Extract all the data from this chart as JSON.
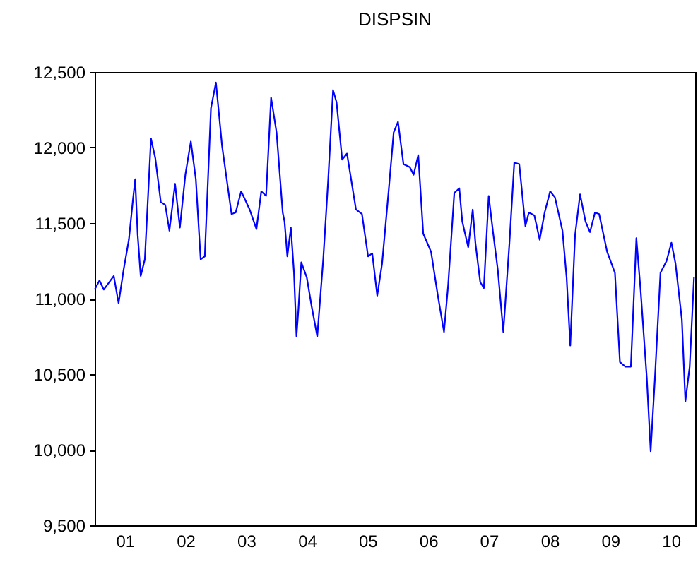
{
  "chart_data": {
    "type": "line",
    "title": "DISPSIN",
    "color": "#0000ff",
    "marker": "none",
    "grid": false,
    "x": [
      "2001-01-01",
      "2001-01-30",
      "2001-02-25",
      "2001-04-26",
      "2001-05-25",
      "2001-06-24",
      "2001-07-26",
      "2001-08-18",
      "2001-09-02",
      "2001-09-17",
      "2001-10-05",
      "2001-10-30",
      "2001-12-06",
      "2002-01-01",
      "2002-02-03",
      "2002-03-02",
      "2002-03-27",
      "2002-04-30",
      "2002-05-29",
      "2002-07-01",
      "2002-08-03",
      "2002-09-02",
      "2002-10-01",
      "2002-10-26",
      "2002-12-02",
      "2003-01-01",
      "2003-02-07",
      "2003-04-05",
      "2003-04-30",
      "2003-06-02",
      "2003-07-23",
      "2003-09-02",
      "2003-10-01",
      "2003-10-30",
      "2003-11-29",
      "2004-01-01",
      "2004-02-07",
      "2004-02-18",
      "2004-03-06",
      "2004-03-27",
      "2004-04-15",
      "2004-04-30",
      "2004-05-11",
      "2004-05-29",
      "2004-07-01",
      "2004-07-30",
      "2004-09-02",
      "2004-10-08",
      "2004-11-07",
      "2004-12-06",
      "2004-12-27",
      "2005-01-30",
      "2005-02-28",
      "2005-04-23",
      "2005-05-29",
      "2005-07-05",
      "2005-07-30",
      "2005-08-29",
      "2005-09-27",
      "2005-11-07",
      "2005-12-06",
      "2006-01-01",
      "2006-02-03",
      "2006-03-13",
      "2006-04-05",
      "2006-05-03",
      "2006-06-02",
      "2006-07-19",
      "2006-08-29",
      "2006-10-05",
      "2006-10-30",
      "2006-12-06",
      "2007-01-05",
      "2007-01-23",
      "2007-02-28",
      "2007-03-27",
      "2007-04-12",
      "2007-05-11",
      "2007-06-02",
      "2007-07-01",
      "2007-07-26",
      "2007-08-25",
      "2007-09-27",
      "2007-11-03",
      "2007-12-02",
      "2008-01-01",
      "2008-02-07",
      "2008-02-28",
      "2008-04-01",
      "2008-05-03",
      "2008-06-02",
      "2008-07-05",
      "2008-08-03",
      "2008-09-17",
      "2008-10-12",
      "2008-11-03",
      "2008-12-02",
      "2009-01-01",
      "2009-02-03",
      "2009-03-02",
      "2009-04-01",
      "2009-04-26",
      "2009-06-13",
      "2009-07-30",
      "2009-08-29",
      "2009-10-01",
      "2009-11-03",
      "2009-12-06",
      "2010-01-01",
      "2010-02-07",
      "2010-03-02",
      "2010-03-27",
      "2010-04-30",
      "2010-06-06",
      "2010-07-05",
      "2010-07-30",
      "2010-09-06",
      "2010-09-27",
      "2010-10-23",
      "2010-11-18"
    ],
    "values": [
      11060,
      11120,
      11060,
      11150,
      10970,
      11190,
      11390,
      11640,
      11790,
      11420,
      11150,
      11260,
      12060,
      11930,
      11640,
      11620,
      11450,
      11760,
      11470,
      11820,
      12040,
      11790,
      11260,
      11280,
      12260,
      12430,
      12010,
      11560,
      11570,
      11710,
      11590,
      11460,
      11710,
      11680,
      12330,
      12100,
      11570,
      11510,
      11280,
      11470,
      11170,
      10750,
      10920,
      11240,
      11140,
      10950,
      10750,
      11260,
      11790,
      12380,
      12300,
      11920,
      11960,
      11590,
      11560,
      11280,
      11300,
      11020,
      11230,
      11730,
      12100,
      12170,
      11890,
      11870,
      11820,
      11950,
      11430,
      11310,
      11020,
      10780,
      11090,
      11700,
      11730,
      11510,
      11340,
      11590,
      11370,
      11110,
      11070,
      11680,
      11450,
      11190,
      10780,
      11370,
      11900,
      11890,
      11480,
      11570,
      11550,
      11390,
      11570,
      11710,
      11670,
      11450,
      11140,
      10690,
      11420,
      11690,
      11510,
      11440,
      11570,
      11560,
      11310,
      11170,
      10580,
      10550,
      10550,
      11400,
      11050,
      10470,
      9990,
      10460,
      11170,
      11250,
      11370,
      11230,
      10860,
      10320,
      10550,
      11140
    ],
    "xlim": [
      "2001-01-01",
      "2010-11-25"
    ],
    "xticks": [
      {
        "value": "2001-07-02",
        "label": "01"
      },
      {
        "value": "2002-07-02",
        "label": "02"
      },
      {
        "value": "2003-07-02",
        "label": "03"
      },
      {
        "value": "2004-07-02",
        "label": "04"
      },
      {
        "value": "2005-07-02",
        "label": "05"
      },
      {
        "value": "2006-07-02",
        "label": "06"
      },
      {
        "value": "2007-07-02",
        "label": "07"
      },
      {
        "value": "2008-07-02",
        "label": "08"
      },
      {
        "value": "2009-07-02",
        "label": "09"
      },
      {
        "value": "2010-07-02",
        "label": "10"
      }
    ],
    "ylim": [
      9500,
      12500
    ],
    "yticks": [
      {
        "value": 9500,
        "label": "9,500"
      },
      {
        "value": 10000,
        "label": "10,000"
      },
      {
        "value": 10500,
        "label": "10,500"
      },
      {
        "value": 11000,
        "label": "11,000"
      },
      {
        "value": 11500,
        "label": "11,500"
      },
      {
        "value": 12000,
        "label": "12,000"
      },
      {
        "value": 12500,
        "label": "12,500"
      }
    ]
  }
}
